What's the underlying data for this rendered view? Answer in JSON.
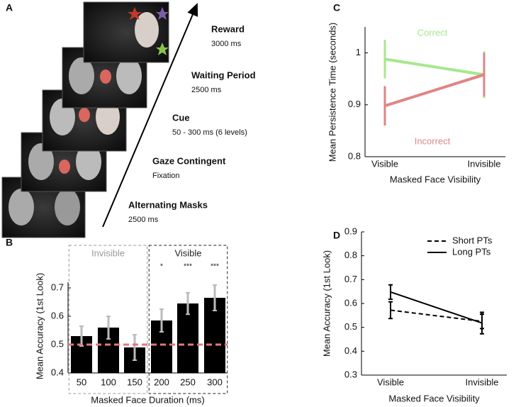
{
  "diagram": {
    "panel_label": "A",
    "steps": [
      {
        "title": "Reward",
        "detail": "3000 ms"
      },
      {
        "title": "Waiting Period",
        "detail": "2500 ms"
      },
      {
        "title": "Cue",
        "detail": "50 - 300 ms (6 levels)"
      },
      {
        "title": "Gaze Contingent",
        "detail": "Fixation"
      },
      {
        "title": "Alternating Masks",
        "detail": "2500 ms"
      }
    ]
  },
  "chart_data": [
    {
      "type": "bar",
      "panel_label": "B",
      "y_label": "Mean Accuracy (1st Look)",
      "x_label": "Masked Face Duration (ms)",
      "categories": [
        "50",
        "100",
        "150",
        "200",
        "250",
        "300"
      ],
      "values": [
        0.53,
        0.56,
        0.49,
        0.585,
        0.645,
        0.665
      ],
      "errors": [
        0.035,
        0.04,
        0.045,
        0.04,
        0.038,
        0.045
      ],
      "color": "#000000",
      "error_color": "#bbbbbb",
      "reference_line": 0.5,
      "reference_color": "#e07a7a",
      "ylim": [
        0.4,
        0.72
      ],
      "yticks": [
        0.4,
        0.5,
        0.6,
        0.7
      ],
      "groups": [
        {
          "label": "Invisible",
          "from": "50",
          "to": "150",
          "color": "#999999"
        },
        {
          "label": "Visible",
          "from": "200",
          "to": "300",
          "color": "#222222"
        }
      ],
      "annotations": [
        {
          "text": "*",
          "category": "200"
        },
        {
          "text": "***",
          "category": "250"
        },
        {
          "text": "***",
          "category": "300"
        }
      ]
    },
    {
      "type": "line",
      "panel_label": "C",
      "y_label": "Mean Persistence Time (seconds)",
      "x_label": "Masked Face Visibility",
      "categories": [
        "Visible",
        "Invisible"
      ],
      "ylim": [
        0.8,
        1.05
      ],
      "yticks": [
        0.8,
        0.9,
        1
      ],
      "series": [
        {
          "name": "Correct",
          "color": "#a6e88c",
          "values": [
            0.988,
            0.958
          ],
          "errors": [
            0.037,
            0.045
          ]
        },
        {
          "name": "Incorrect",
          "color": "#e08585",
          "values": [
            0.898,
            0.958
          ],
          "errors": [
            0.038,
            0.042
          ]
        }
      ]
    },
    {
      "type": "line",
      "panel_label": "D",
      "y_label": "Mean Accuracy (1st Look)",
      "x_label": "Masked Face Visibility",
      "categories": [
        "Visible",
        "Invisible"
      ],
      "ylim": [
        0.3,
        0.9
      ],
      "yticks": [
        0.3,
        0.4,
        0.5,
        0.6,
        0.7,
        0.8,
        0.9
      ],
      "legend": "upper right",
      "series": [
        {
          "name": "Short PTs",
          "color": "#000000",
          "dash": true,
          "values": [
            0.572,
            0.525
          ],
          "errors": [
            0.035,
            0.03
          ]
        },
        {
          "name": "Long PTs",
          "color": "#000000",
          "dash": false,
          "values": [
            0.648,
            0.518
          ],
          "errors": [
            0.03,
            0.045
          ]
        }
      ]
    }
  ]
}
